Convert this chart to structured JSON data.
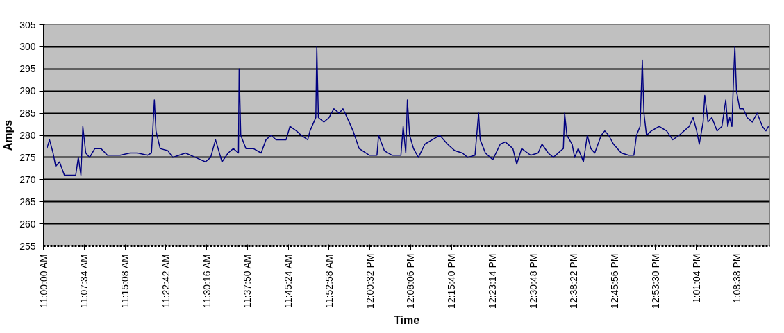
{
  "chart_data": {
    "type": "line",
    "xlabel": "Time",
    "ylabel": "Amps",
    "xlim": [
      11.0,
      13.245
    ],
    "ylim": [
      255,
      305
    ],
    "yticks": [
      255,
      260,
      265,
      270,
      275,
      280,
      285,
      290,
      295,
      300,
      305
    ],
    "xticks": [
      {
        "value": 11.0,
        "label": "11:00:00 AM"
      },
      {
        "value": 11.1261,
        "label": "11:07:34 AM"
      },
      {
        "value": 11.2522,
        "label": "11:15:08 AM"
      },
      {
        "value": 11.3783,
        "label": "11:22:42 AM"
      },
      {
        "value": 11.5044,
        "label": "11:30:16 AM"
      },
      {
        "value": 11.6306,
        "label": "11:37:50 AM"
      },
      {
        "value": 11.7567,
        "label": "11:45:24 AM"
      },
      {
        "value": 11.8828,
        "label": "11:52:58 AM"
      },
      {
        "value": 12.0089,
        "label": "12:00:32 PM"
      },
      {
        "value": 12.135,
        "label": "12:08:06 PM"
      },
      {
        "value": 12.2611,
        "label": "12:15:40 PM"
      },
      {
        "value": 12.3872,
        "label": "12:23:14 PM"
      },
      {
        "value": 12.5133,
        "label": "12:30:48 PM"
      },
      {
        "value": 12.6394,
        "label": "12:38:22 PM"
      },
      {
        "value": 12.7656,
        "label": "12:45:56 PM"
      },
      {
        "value": 12.8917,
        "label": "12:53:30 PM"
      },
      {
        "value": 13.0178,
        "label": "1:01:04 PM"
      },
      {
        "value": 13.1439,
        "label": "1:08:38 PM"
      }
    ],
    "grid": "y",
    "marker": "none",
    "line_style": "solid",
    "series": [
      {
        "color": "#000080",
        "x": [
          11.011,
          11.019,
          11.03,
          11.038,
          11.05,
          11.065,
          11.089,
          11.1,
          11.108,
          11.116,
          11.122,
          11.131,
          11.143,
          11.159,
          11.178,
          11.198,
          11.237,
          11.268,
          11.291,
          11.322,
          11.334,
          11.338,
          11.343,
          11.348,
          11.361,
          11.385,
          11.4,
          11.439,
          11.47,
          11.501,
          11.517,
          11.532,
          11.552,
          11.571,
          11.587,
          11.603,
          11.605,
          11.61,
          11.626,
          11.649,
          11.673,
          11.688,
          11.704,
          11.719,
          11.739,
          11.75,
          11.762,
          11.782,
          11.797,
          11.817,
          11.824,
          11.836,
          11.842,
          11.845,
          11.85,
          11.867,
          11.883,
          11.898,
          11.914,
          11.926,
          11.945,
          11.957,
          11.976,
          12.007,
          12.031,
          12.036,
          12.054,
          12.077,
          12.105,
          12.112,
          12.12,
          12.125,
          12.132,
          12.144,
          12.159,
          12.179,
          12.202,
          12.225,
          12.249,
          12.272,
          12.295,
          12.311,
          12.334,
          12.345,
          12.35,
          12.366,
          12.389,
          12.412,
          12.428,
          12.451,
          12.463,
          12.478,
          12.506,
          12.529,
          12.541,
          12.56,
          12.576,
          12.591,
          12.607,
          12.611,
          12.618,
          12.634,
          12.642,
          12.653,
          12.669,
          12.681,
          12.692,
          12.704,
          12.724,
          12.735,
          12.747,
          12.762,
          12.786,
          12.809,
          12.825,
          12.833,
          12.844,
          12.851,
          12.856,
          12.864,
          12.879,
          12.903,
          12.926,
          12.945,
          12.965,
          12.98,
          12.996,
          13.008,
          13.019,
          13.027,
          13.039,
          13.044,
          13.054,
          13.066,
          13.082,
          13.097,
          13.109,
          13.115,
          13.121,
          13.128,
          13.133,
          13.137,
          13.142,
          13.152,
          13.163,
          13.175,
          13.191,
          13.206,
          13.222,
          13.233,
          13.241
        ],
        "values": [
          277,
          279,
          276,
          273,
          274,
          271,
          271,
          271,
          275,
          271,
          282,
          276,
          275,
          277,
          277,
          275.5,
          275.5,
          276,
          276,
          275.5,
          276,
          281,
          288,
          281,
          277,
          276.5,
          275,
          276,
          275,
          274,
          275,
          279,
          274,
          276,
          277,
          276,
          295,
          280,
          277,
          277,
          276,
          279,
          280,
          279,
          279,
          279,
          282,
          281,
          280,
          279,
          281,
          283,
          284,
          300,
          284,
          283,
          284,
          286,
          285,
          286,
          283,
          281,
          277,
          275.5,
          275.5,
          280,
          276.5,
          275.5,
          275.5,
          282,
          276,
          288,
          280,
          277,
          275,
          278,
          279,
          280,
          278,
          276.5,
          276,
          275,
          275.5,
          285,
          279,
          276,
          274.5,
          278,
          278.5,
          277,
          273.5,
          277,
          275.5,
          276,
          278,
          276,
          275,
          276,
          277,
          285,
          280,
          278,
          275,
          277,
          274,
          280,
          277,
          276,
          280,
          281,
          280,
          278,
          276,
          275.5,
          275.5,
          280,
          282,
          297,
          285,
          280,
          281,
          282,
          281,
          279,
          280,
          281,
          282,
          284,
          281,
          278,
          283,
          289,
          283,
          284,
          281,
          282,
          288,
          282,
          284,
          282,
          293,
          300,
          290,
          286,
          286,
          284,
          283,
          285,
          282,
          281,
          282
        ]
      }
    ]
  }
}
